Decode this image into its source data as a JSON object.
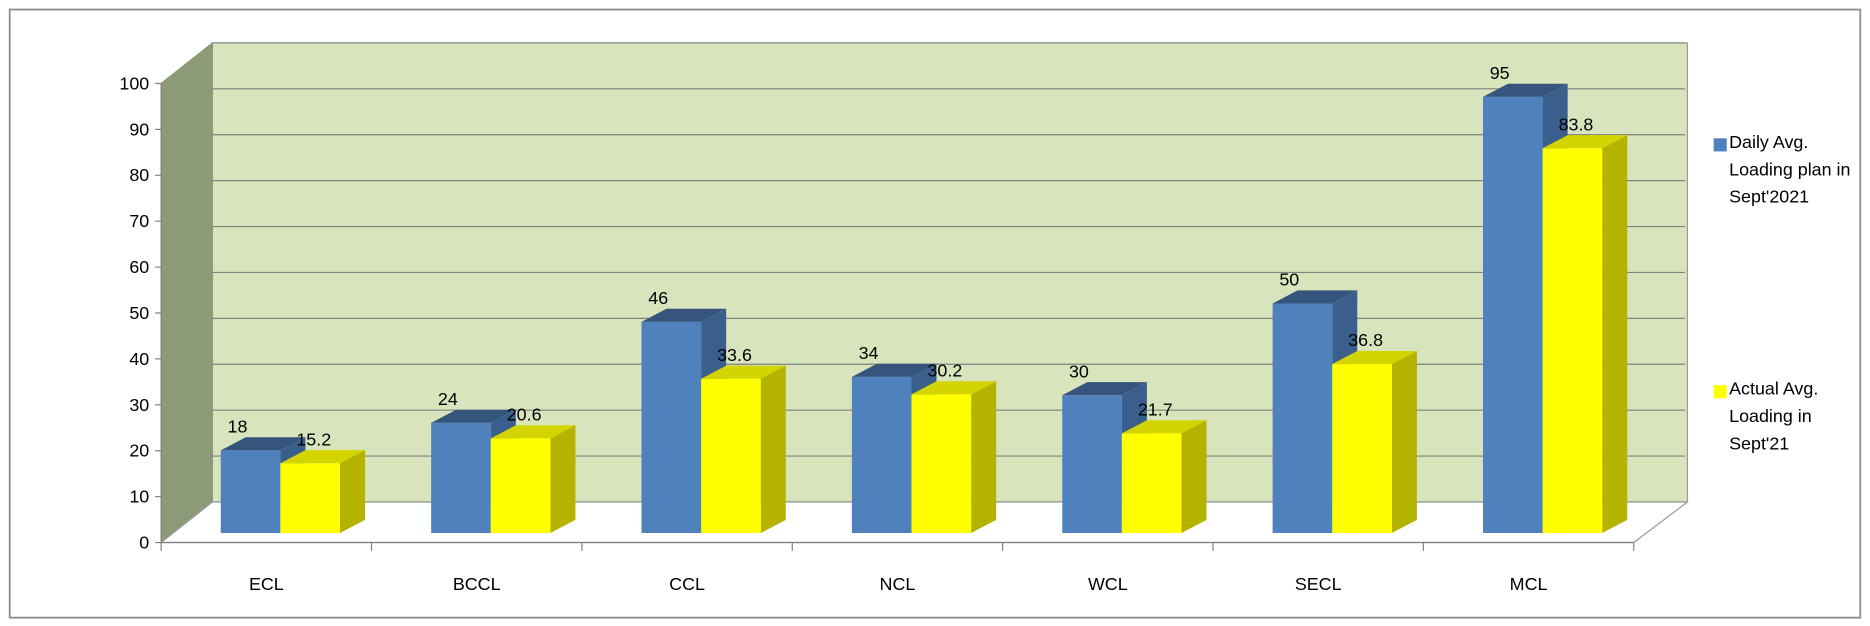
{
  "chart_data": {
    "type": "bar3d",
    "categories": [
      "ECL",
      "BCCL",
      "CCL",
      "NCL",
      "WCL",
      "SECL",
      "MCL"
    ],
    "series": [
      {
        "name": "Daily Avg. Loading plan in Sept'2021",
        "color": "#4f81bd",
        "values": [
          18,
          24,
          46,
          34,
          30,
          50,
          95
        ]
      },
      {
        "name": "Actual Avg. Loading in Sept'21",
        "color": "#ffff00",
        "values": [
          15.2,
          20.6,
          33.6,
          30.2,
          21.7,
          36.8,
          83.8
        ]
      }
    ],
    "ylim": [
      0,
      100
    ],
    "yticks": [
      0,
      10,
      20,
      30,
      40,
      50,
      60,
      70,
      80,
      90,
      100
    ],
    "grid": true,
    "legend": "right"
  }
}
